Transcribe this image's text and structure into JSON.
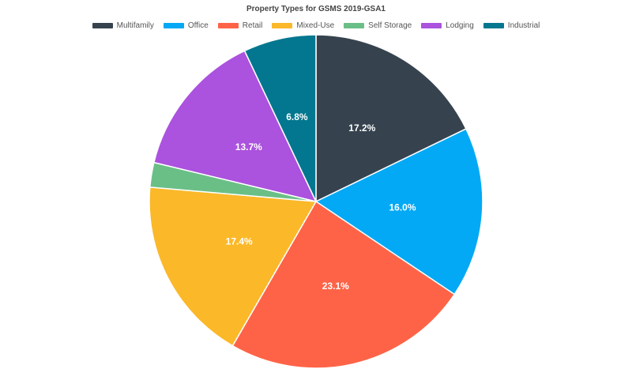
{
  "chart_data": {
    "type": "pie",
    "title": "Property Types for GSMS 2019-GSA1",
    "legend_position": "top-center",
    "categories": [
      "Multifamily",
      "Office",
      "Retail",
      "Mixed-Use",
      "Self Storage",
      "Lodging",
      "Industrial"
    ],
    "values": [
      17.2,
      16.0,
      23.1,
      17.4,
      2.3,
      13.7,
      6.8
    ],
    "labels": [
      "17.2%",
      "16.0%",
      "23.1%",
      "17.4%",
      "",
      "13.7%",
      "6.8%"
    ],
    "colors": [
      "#36434f",
      "#03a9f4",
      "#ff6347",
      "#fbb829",
      "#6abf86",
      "#ab52de",
      "#03778f"
    ]
  }
}
